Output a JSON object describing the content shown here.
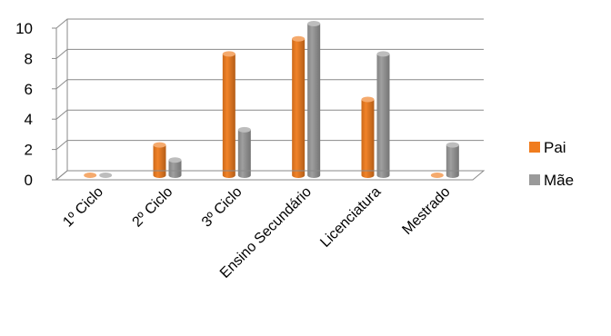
{
  "chart_data": {
    "type": "bar",
    "categories": [
      "1º  Ciclo",
      "2º Ciclo",
      "3º Ciclo",
      "Ensino Secundário",
      "Licenciatura",
      "Mestrado"
    ],
    "series": [
      {
        "name": "Pai",
        "values": [
          0,
          2,
          8,
          9,
          5,
          0
        ],
        "color": "#f07c1e"
      },
      {
        "name": "Mãe",
        "values": [
          0,
          1,
          3,
          10,
          8,
          2
        ],
        "color": "#9a9a9a"
      }
    ],
    "ylim": [
      0,
      10
    ],
    "yticks": [
      0,
      2,
      4,
      6,
      8,
      10
    ],
    "grid": true,
    "legend": "right",
    "three_d": true
  }
}
